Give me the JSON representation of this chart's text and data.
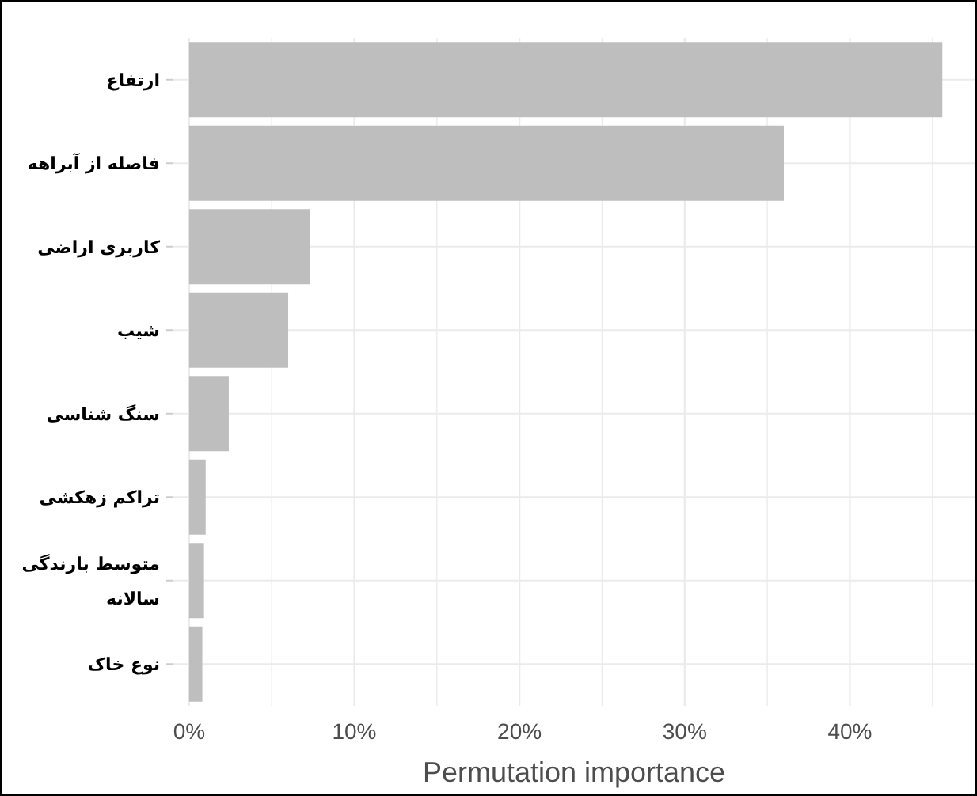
{
  "chart_data": {
    "type": "bar",
    "orientation": "horizontal",
    "categories": [
      "ارتفاع",
      "فاصله از آبراهه",
      "کاربری اراضی",
      "شیب",
      "سنگ شناسی",
      "تراکم زهکشی",
      "متوسط بارندگی سالانه",
      "نوع خاک"
    ],
    "values": [
      45.6,
      36.0,
      7.3,
      6.0,
      2.4,
      1.0,
      0.9,
      0.8
    ],
    "color": "#bebebe",
    "xlabel": "Permutation importance",
    "xlim": [
      -1,
      47.6
    ],
    "xticks": [
      {
        "value": 0,
        "label": "0%"
      },
      {
        "value": 5,
        "label": null
      },
      {
        "value": 10,
        "label": "10%"
      },
      {
        "value": 15,
        "label": null
      },
      {
        "value": 20,
        "label": "20%"
      },
      {
        "value": 25,
        "label": null
      },
      {
        "value": 30,
        "label": "30%"
      },
      {
        "value": 35,
        "label": null
      },
      {
        "value": 40,
        "label": "40%"
      },
      {
        "value": 45,
        "label": null
      }
    ],
    "grid": true
  }
}
